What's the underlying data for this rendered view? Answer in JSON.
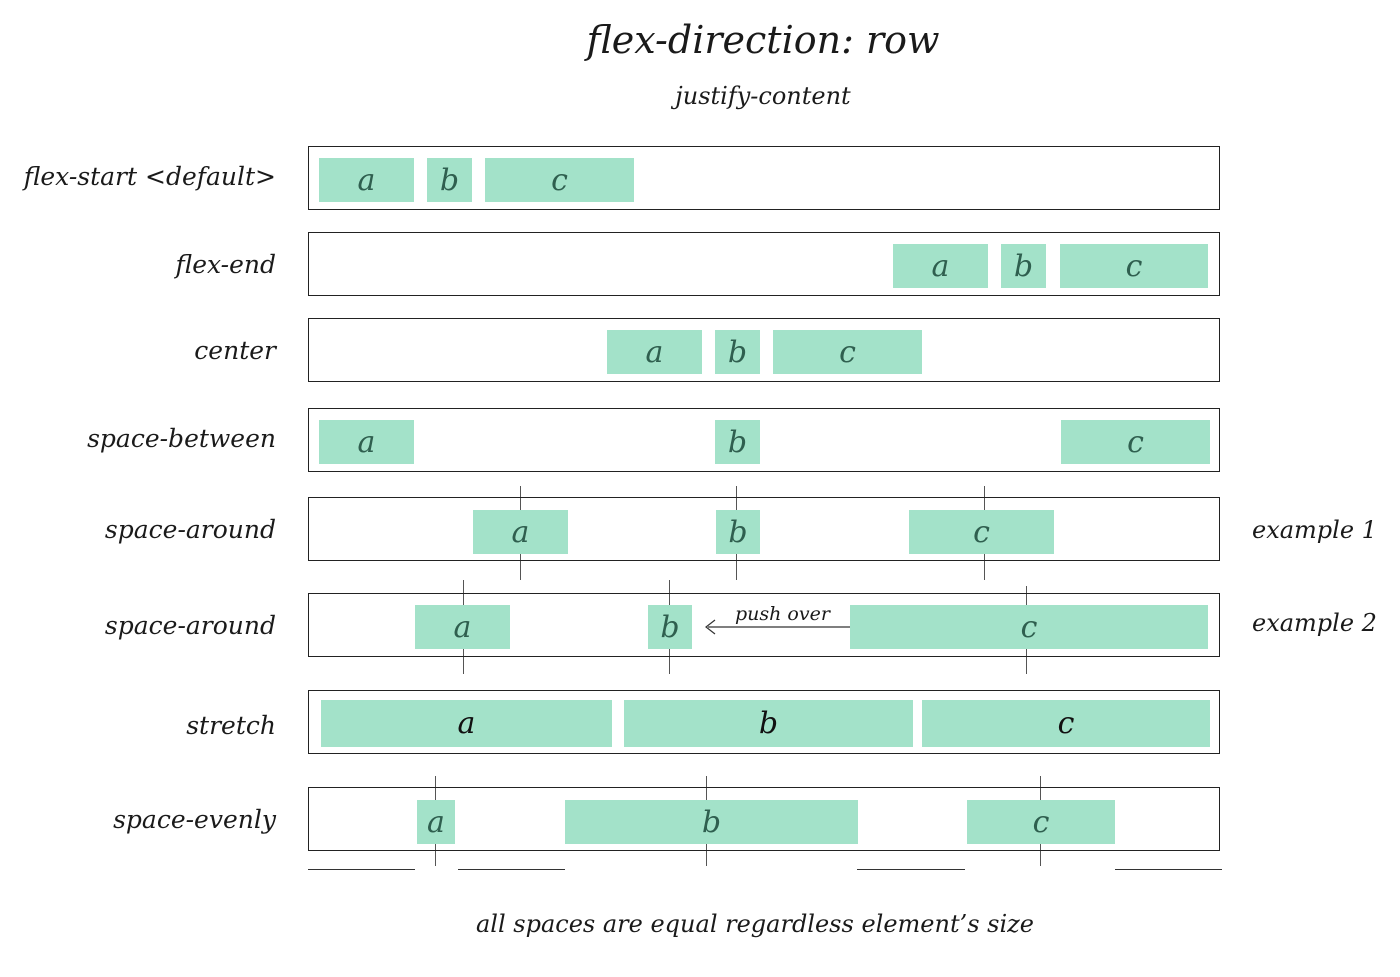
{
  "title": "flex-direction: row",
  "subtitle": "justify-content",
  "rows": [
    {
      "label": "flex-start <default>",
      "items": [
        "a",
        "b",
        "c"
      ]
    },
    {
      "label": "flex-end",
      "items": [
        "a",
        "b",
        "c"
      ]
    },
    {
      "label": "center",
      "items": [
        "a",
        "b",
        "c"
      ]
    },
    {
      "label": "space-between",
      "items": [
        "a",
        "b",
        "c"
      ]
    },
    {
      "label": "space-around",
      "side_label": "example 1",
      "items": [
        "a",
        "b",
        "c"
      ]
    },
    {
      "label": "space-around",
      "side_label": "example 2",
      "items": [
        "a",
        "b",
        "c"
      ],
      "annotation": "push over"
    },
    {
      "label": "stretch",
      "items": [
        "a",
        "b",
        "c"
      ]
    },
    {
      "label": "space-evenly",
      "items": [
        "a",
        "b",
        "c"
      ]
    }
  ],
  "footnote": "all spaces are equal regardless element’s size",
  "colors": {
    "item_fill": "#a3e2c9",
    "item_text": "#2f5f4f",
    "border": "#222222"
  }
}
